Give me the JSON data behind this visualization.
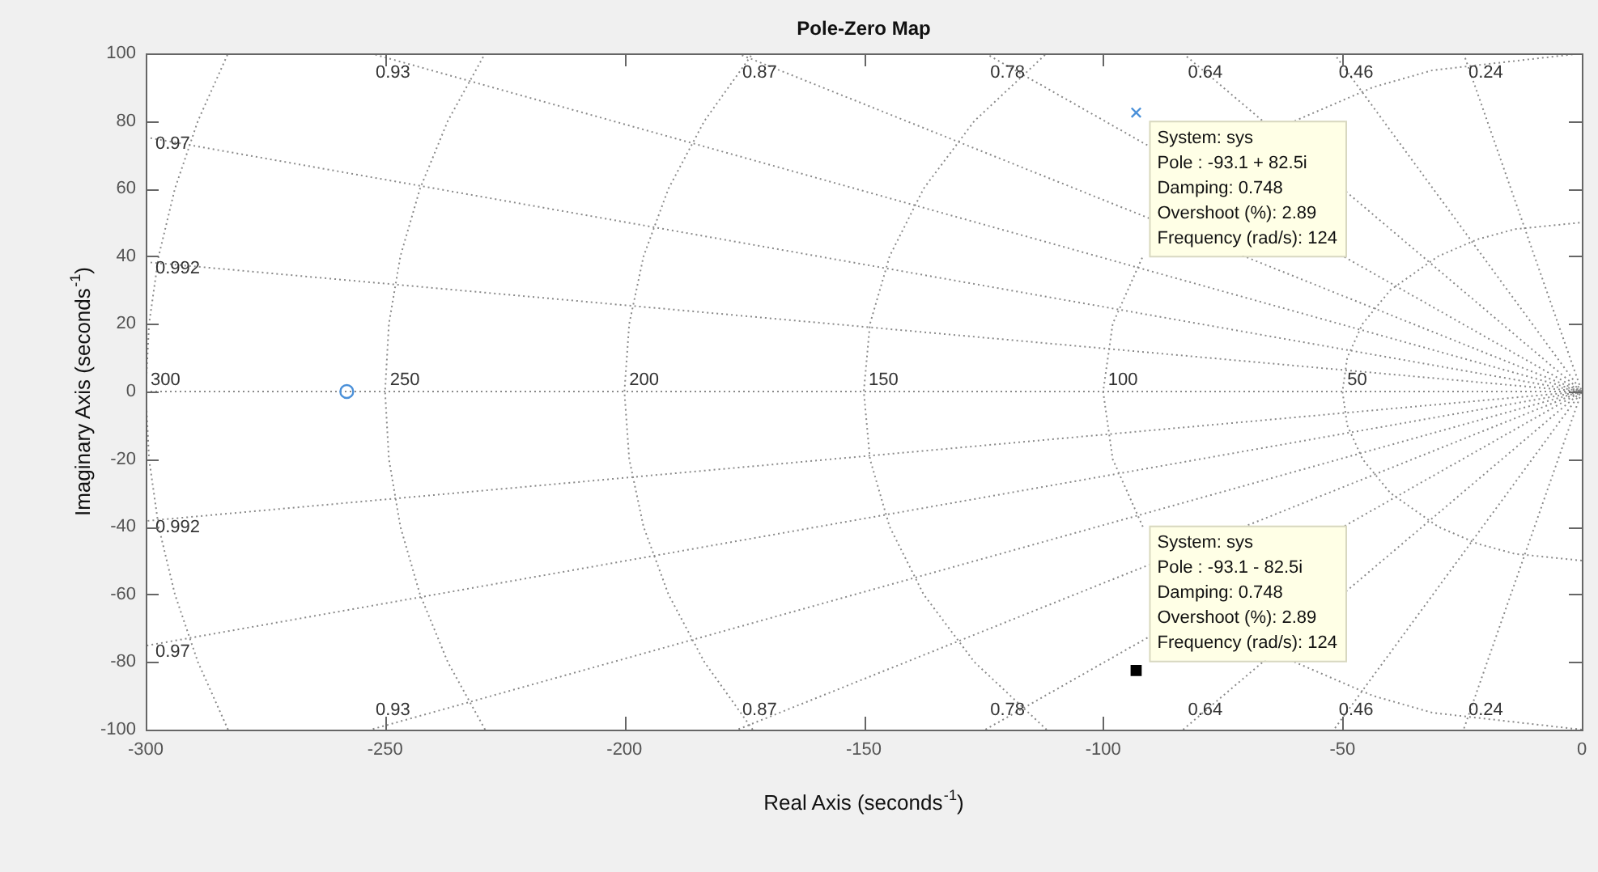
{
  "chart_data": {
    "type": "scatter",
    "title": "Pole-Zero Map",
    "xlabel": "Real Axis (seconds$^{-1}$)",
    "ylabel": "Imaginary Axis (seconds$^{-1}$)",
    "series": [
      {
        "type": "line",
        "name": "0.992",
        "x": [
          -300,
          0,
          -300
        ],
        "values": [
          38.3,
          0,
          -38.3
        ],
        "color": "#8a8a8a",
        "marker": "none",
        "line_style": "dotted"
      },
      {
        "type": "line",
        "name": "0.97",
        "x": [
          -300,
          0,
          -300
        ],
        "values": [
          75.2,
          0,
          -75.2
        ],
        "color": "#8a8a8a",
        "marker": "none",
        "line_style": "dotted"
      },
      {
        "type": "line",
        "name": "0.93",
        "x": [
          -253,
          0,
          -253
        ],
        "values": [
          100,
          0,
          -100
        ],
        "color": "#8a8a8a",
        "marker": "none",
        "line_style": "dotted"
      },
      {
        "type": "line",
        "name": "0.87",
        "x": [
          -176.4,
          0,
          -176.4
        ],
        "values": [
          100,
          0,
          -100
        ],
        "color": "#8a8a8a",
        "marker": "none",
        "line_style": "dotted"
      },
      {
        "type": "line",
        "name": "0.78",
        "x": [
          -124.6,
          0,
          -124.6
        ],
        "values": [
          100,
          0,
          -100
        ],
        "color": "#8a8a8a",
        "marker": "none",
        "line_style": "dotted"
      },
      {
        "type": "line",
        "name": "0.64",
        "x": [
          -83.3,
          0,
          -83.3
        ],
        "values": [
          100,
          0,
          -100
        ],
        "color": "#8a8a8a",
        "marker": "none",
        "line_style": "dotted"
      },
      {
        "type": "line",
        "name": "0.46",
        "x": [
          -51.8,
          0,
          -51.8
        ],
        "values": [
          100,
          0,
          -100
        ],
        "color": "#8a8a8a",
        "marker": "none",
        "line_style": "dotted"
      },
      {
        "type": "line",
        "name": "0.24",
        "x": [
          -24.7,
          0,
          -24.7
        ],
        "values": [
          100,
          0,
          -100
        ],
        "color": "#8a8a8a",
        "marker": "none",
        "line_style": "dotted"
      },
      {
        "type": "line",
        "name": "50",
        "x": [
          0,
          -14,
          -21.8,
          -30,
          -40,
          -45.8,
          -49,
          -50,
          -49,
          -45.8,
          -40,
          -30,
          -21.8,
          -14,
          0
        ],
        "values": [
          -50,
          -48,
          -45,
          -40,
          -30,
          -20,
          -10,
          0,
          10,
          20,
          30,
          40,
          45,
          48,
          50
        ],
        "color": "#8a8a8a",
        "marker": "none",
        "line_style": "dotted"
      },
      {
        "type": "line",
        "name": "100",
        "x": [
          0,
          -31.2,
          -43.6,
          -60,
          -80,
          -91.7,
          -98,
          -100,
          -98,
          -91.7,
          -80,
          -60,
          -43.6,
          -31.2,
          0
        ],
        "values": [
          -100,
          -95,
          -90,
          -80,
          null,
          -40,
          -20,
          0,
          20,
          40,
          null,
          80,
          90,
          95,
          100
        ],
        "color": "#8a8a8a",
        "marker": "none",
        "line_style": "dotted"
      },
      {
        "type": "line",
        "name": "150",
        "x": [
          -111.8,
          -126.9,
          -137.5,
          -144.6,
          -148.7,
          -150,
          -148.7,
          -144.6,
          -137.5,
          -126.9,
          -111.8
        ],
        "values": [
          -100,
          -80,
          -60,
          -40,
          -20,
          0,
          20,
          40,
          60,
          80,
          100
        ],
        "color": "#8a8a8a",
        "marker": "none",
        "line_style": "dotted"
      },
      {
        "type": "line",
        "name": "200",
        "x": [
          -173.2,
          -183.3,
          -190.8,
          -196,
          -199,
          -200,
          -199,
          -196,
          -190.8,
          -183.3,
          -173.2
        ],
        "values": [
          -100,
          -80,
          -60,
          -40,
          -20,
          0,
          20,
          40,
          60,
          80,
          100
        ],
        "color": "#8a8a8a",
        "marker": "none",
        "line_style": "dotted"
      },
      {
        "type": "line",
        "name": "250",
        "x": [
          -229.1,
          -236.9,
          -242.7,
          -246.8,
          -249.2,
          -250,
          -249.2,
          -246.8,
          -242.7,
          -236.9,
          -229.1
        ],
        "values": [
          -100,
          -80,
          -60,
          -40,
          -20,
          0,
          20,
          40,
          60,
          80,
          100
        ],
        "color": "#8a8a8a",
        "marker": "none",
        "line_style": "dotted"
      },
      {
        "type": "line",
        "name": "300",
        "x": [
          -282.8,
          -289.1,
          -293.9,
          -297.3,
          -299.3,
          -300,
          -299.3,
          -297.3,
          -293.9,
          -289.1,
          -282.8
        ],
        "values": [
          -100,
          -80,
          -60,
          -40,
          -20,
          0,
          20,
          40,
          60,
          80,
          100
        ],
        "color": "#8a8a8a",
        "marker": "none",
        "line_style": "dotted"
      },
      {
        "x": [
          -258
        ],
        "values": [
          0
        ],
        "color": "#4a90d9",
        "marker": "circle"
      },
      {
        "x": [
          -93.1
        ],
        "values": [
          82.5
        ],
        "color": "#4a90d9",
        "marker": "cross"
      },
      {
        "x": [
          -93.1
        ],
        "values": [
          -82.5
        ],
        "color": "#000000",
        "marker": "square"
      }
    ],
    "ref_lines": [
      {
        "axis": "y",
        "value": 0,
        "color": "#8a8a8a",
        "line_style": "dotted"
      }
    ],
    "xlim": [
      -300,
      0
    ],
    "xticks": [
      -300,
      -250,
      -200,
      -150,
      -100,
      -50,
      0
    ],
    "ylim": [
      -100,
      100
    ],
    "yticks": [
      -100,
      -80,
      -60,
      -40,
      -20,
      0,
      20,
      40,
      60,
      80,
      100
    ],
    "legend": false,
    "annotations": [
      {
        "text": "System: sys\nPole : -93.1 + 82.5i\nDamping: 0.748\nOvershoot (%): 2.89\nFrequency (rad/s): 124",
        "x": -93.1,
        "y": 82.5
      },
      {
        "text": "System: sys\nPole : -93.1 - 82.5i\nDamping: 0.748\nOvershoot (%): 2.89\nFrequency (rad/s): 124",
        "x": -93.1,
        "y": -82.5
      }
    ]
  }
}
